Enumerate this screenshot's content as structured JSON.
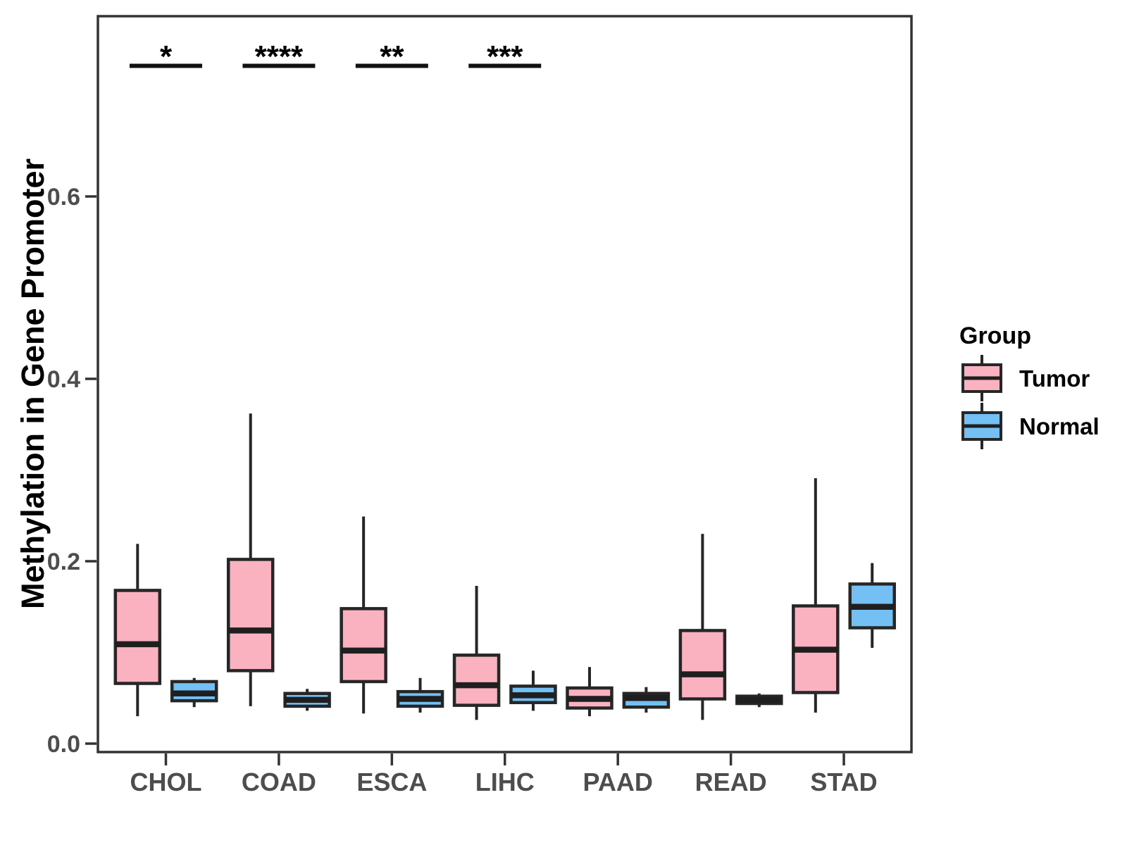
{
  "chart_data": {
    "type": "boxplot",
    "title": "",
    "xlabel": "",
    "ylabel": "Methylation in Gene Promoter",
    "categories": [
      "CHOL",
      "COAD",
      "ESCA",
      "LIHC",
      "PAAD",
      "READ",
      "STAD"
    ],
    "yticks": [
      0.0,
      0.2,
      0.4,
      0.6
    ],
    "ytick_labels": [
      "0.0",
      "0.2",
      "0.4",
      "0.6"
    ],
    "ylim": [
      -0.01,
      0.8
    ],
    "grid": "off",
    "legend": {
      "title": "Group",
      "position": "right",
      "entries": [
        {
          "label": "Tumor",
          "color": "#FAB2C1"
        },
        {
          "label": "Normal",
          "color": "#74BFF4"
        }
      ]
    },
    "significance": [
      {
        "category": "CHOL",
        "label": "*"
      },
      {
        "category": "COAD",
        "label": "****"
      },
      {
        "category": "ESCA",
        "label": "**"
      },
      {
        "category": "LIHC",
        "label": "***"
      }
    ],
    "series": [
      {
        "name": "Tumor",
        "color": "#FAB2C1",
        "boxes": [
          {
            "category": "CHOL",
            "whisker_low": 0.03,
            "q1": 0.066,
            "median": 0.109,
            "q3": 0.168,
            "whisker_high": 0.219
          },
          {
            "category": "COAD",
            "whisker_low": 0.041,
            "q1": 0.08,
            "median": 0.124,
            "q3": 0.202,
            "whisker_high": 0.362
          },
          {
            "category": "ESCA",
            "whisker_low": 0.033,
            "q1": 0.068,
            "median": 0.102,
            "q3": 0.148,
            "whisker_high": 0.249
          },
          {
            "category": "LIHC",
            "whisker_low": 0.026,
            "q1": 0.042,
            "median": 0.064,
            "q3": 0.097,
            "whisker_high": 0.173
          },
          {
            "category": "PAAD",
            "whisker_low": 0.03,
            "q1": 0.039,
            "median": 0.049,
            "q3": 0.061,
            "whisker_high": 0.084
          },
          {
            "category": "READ",
            "whisker_low": 0.026,
            "q1": 0.049,
            "median": 0.076,
            "q3": 0.124,
            "whisker_high": 0.23
          },
          {
            "category": "STAD",
            "whisker_low": 0.034,
            "q1": 0.056,
            "median": 0.103,
            "q3": 0.151,
            "whisker_high": 0.291
          }
        ]
      },
      {
        "name": "Normal",
        "color": "#74BFF4",
        "boxes": [
          {
            "category": "CHOL",
            "whisker_low": 0.04,
            "q1": 0.047,
            "median": 0.055,
            "q3": 0.068,
            "whisker_high": 0.072
          },
          {
            "category": "COAD",
            "whisker_low": 0.036,
            "q1": 0.041,
            "median": 0.048,
            "q3": 0.055,
            "whisker_high": 0.06
          },
          {
            "category": "ESCA",
            "whisker_low": 0.034,
            "q1": 0.041,
            "median": 0.049,
            "q3": 0.057,
            "whisker_high": 0.072
          },
          {
            "category": "LIHC",
            "whisker_low": 0.036,
            "q1": 0.045,
            "median": 0.053,
            "q3": 0.063,
            "whisker_high": 0.08
          },
          {
            "category": "PAAD",
            "whisker_low": 0.034,
            "q1": 0.04,
            "median": 0.05,
            "q3": 0.055,
            "whisker_high": 0.062
          },
          {
            "category": "READ",
            "whisker_low": 0.04,
            "q1": 0.044,
            "median": 0.048,
            "q3": 0.052,
            "whisker_high": 0.055
          },
          {
            "category": "STAD",
            "whisker_low": 0.105,
            "q1": 0.127,
            "median": 0.15,
            "q3": 0.175,
            "whisker_high": 0.198
          }
        ]
      }
    ],
    "style_colors": {
      "box_border": "#262626",
      "median": "#1f1f1f",
      "axis": "#333333",
      "tick_text": "#4d4d4d",
      "significance": "#111111",
      "background": "#ffffff"
    }
  }
}
